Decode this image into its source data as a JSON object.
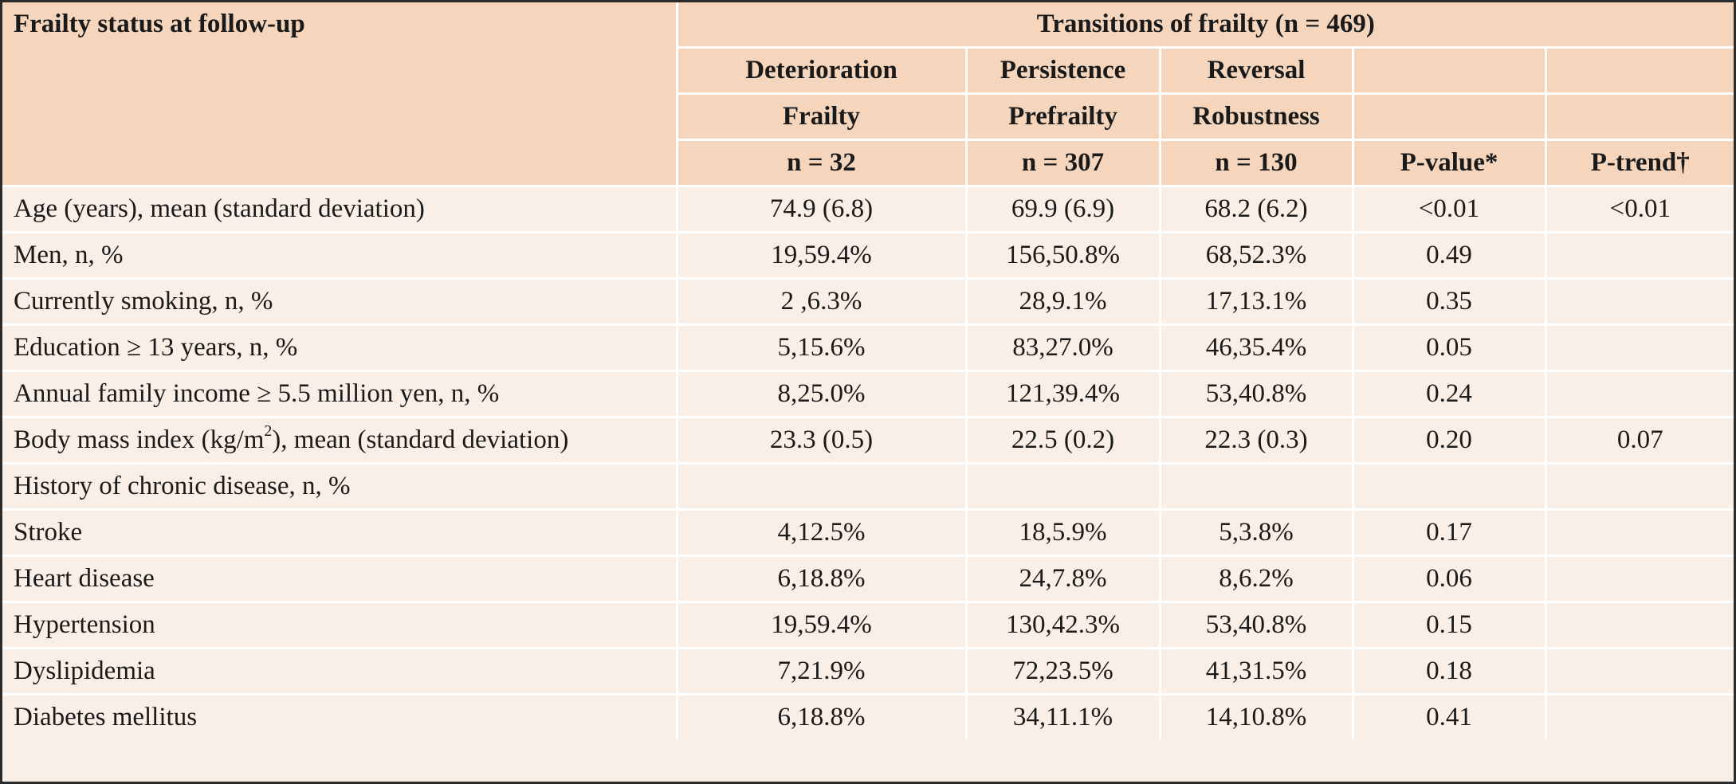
{
  "header": {
    "corner_label": "Frailty status at follow-up",
    "span_title": "Transitions of frailty (n = 469)",
    "row_a": [
      "Deterioration",
      "Persistence",
      "Reversal",
      "",
      ""
    ],
    "row_b": [
      "Frailty",
      "Prefrailty",
      "Robustness",
      "",
      ""
    ],
    "row_c": [
      "n = 32",
      "n = 307",
      "n = 130",
      "P-value*",
      "P-trend†"
    ]
  },
  "rows": [
    {
      "label": "Age (years), mean (standard deviation)",
      "cells": [
        "74.9 (6.8)",
        "69.9 (6.9)",
        "68.2 (6.2)",
        "<0.01",
        "<0.01"
      ]
    },
    {
      "label": "Men, n, %",
      "cells": [
        "19,59.4%",
        "156,50.8%",
        "68,52.3%",
        "0.49",
        ""
      ]
    },
    {
      "label": "Currently smoking, n, %",
      "cells": [
        "2 ,6.3%",
        "28,9.1%",
        "17,13.1%",
        "0.35",
        ""
      ]
    },
    {
      "label": "Education ≥ 13 years, n, %",
      "cells": [
        "5,15.6%",
        "83,27.0%",
        "46,35.4%",
        "0.05",
        ""
      ]
    },
    {
      "label": "Annual family income ≥ 5.5 million yen, n, %",
      "cells": [
        "8,25.0%",
        "121,39.4%",
        "53,40.8%",
        "0.24",
        ""
      ]
    },
    {
      "label_pre": "Body mass index (kg/m",
      "label_sup": "2",
      "label_post": "), mean (standard deviation)",
      "cells": [
        "23.3 (0.5)",
        "22.5 (0.2)",
        "22.3 (0.3)",
        "0.20",
        "0.07"
      ]
    },
    {
      "label": "History of chronic disease, n, %",
      "cells": [
        "",
        "",
        "",
        "",
        ""
      ]
    },
    {
      "label": "Stroke",
      "cells": [
        "4,12.5%",
        "18,5.9%",
        "5,3.8%",
        "0.17",
        ""
      ]
    },
    {
      "label": "Heart disease",
      "cells": [
        "6,18.8%",
        "24,7.8%",
        "8,6.2%",
        "0.06",
        ""
      ]
    },
    {
      "label": "Hypertension",
      "cells": [
        "19,59.4%",
        "130,42.3%",
        "53,40.8%",
        "0.15",
        ""
      ]
    },
    {
      "label": "Dyslipidemia",
      "cells": [
        "7,21.9%",
        "72,23.5%",
        "41,31.5%",
        "0.18",
        ""
      ]
    },
    {
      "label": "Diabetes mellitus",
      "cells": [
        "6,18.8%",
        "34,11.1%",
        "14,10.8%",
        "0.41",
        ""
      ]
    }
  ],
  "colors": {
    "header_fill": "#f5d6bd",
    "body_fill": "#faefe6",
    "rule": "#ffffff",
    "outer_border": "#2b2b2b"
  }
}
